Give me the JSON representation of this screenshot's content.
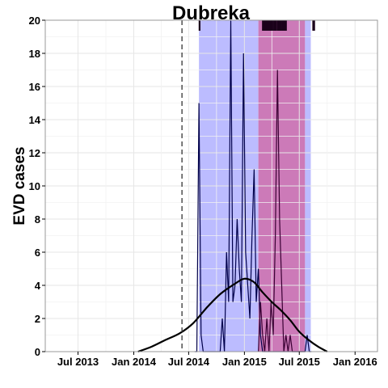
{
  "chart_data": {
    "type": "line",
    "title": "Dubreka",
    "xlabel": "",
    "ylabel": "EVD cases",
    "xlim": [
      "2013-03-15",
      "2016-03-15"
    ],
    "ylim": [
      0,
      20
    ],
    "y_ticks": [
      0,
      2,
      4,
      6,
      8,
      10,
      12,
      14,
      16,
      18,
      20
    ],
    "x_ticks": [
      {
        "date": "2013-07-01",
        "label": "Jul 2013"
      },
      {
        "date": "2014-01-01",
        "label": "Jan 2014"
      },
      {
        "date": "2014-07-01",
        "label": "Jul 2014"
      },
      {
        "date": "2015-01-01",
        "label": "Jan 2015"
      },
      {
        "date": "2015-07-01",
        "label": "Jul 2015"
      },
      {
        "date": "2016-01-01",
        "label": "Jan 2016"
      }
    ],
    "grid": true,
    "vertical_line": {
      "date": "2014-06-09",
      "style": "dashed"
    },
    "shaded_regions": [
      {
        "start": "2014-08-04",
        "end": "2015-02-16",
        "color": "#bcbcff"
      },
      {
        "start": "2015-02-16",
        "end": "2015-07-20",
        "color": "#cc7ab8"
      },
      {
        "start": "2015-07-20",
        "end": "2015-08-08",
        "color": "#bcbcff"
      }
    ],
    "series": [
      {
        "color": "#00004a",
        "x": [
          "2014-07-21",
          "2014-07-28",
          "2014-08-04",
          "2014-08-11",
          "2014-08-18",
          "2014-08-25",
          "2014-09-01",
          "2014-09-08",
          "2014-09-15",
          "2014-09-22",
          "2014-09-29",
          "2014-10-06",
          "2014-10-13",
          "2014-10-20",
          "2014-10-27",
          "2014-11-03",
          "2014-11-10",
          "2014-11-17",
          "2014-11-24",
          "2014-12-01",
          "2014-12-08",
          "2014-12-15",
          "2014-12-22",
          "2014-12-29",
          "2015-01-05",
          "2015-01-12",
          "2015-01-19",
          "2015-01-26",
          "2015-02-02",
          "2015-02-09",
          "2015-02-16",
          "2015-02-23",
          "2015-03-02",
          "2015-03-09",
          "2015-03-16",
          "2015-03-23",
          "2015-03-30",
          "2015-04-06",
          "2015-04-13",
          "2015-04-20",
          "2015-04-27",
          "2015-05-04",
          "2015-05-11",
          "2015-05-18",
          "2015-05-25",
          "2015-06-01",
          "2015-06-08",
          "2015-06-15",
          "2015-06-22",
          "2015-06-29",
          "2015-07-06",
          "2015-07-13",
          "2015-07-20",
          "2015-07-27",
          "2015-08-03",
          "2015-08-10"
        ],
        "values": [
          0,
          0,
          15,
          1,
          0,
          0,
          0,
          0,
          0,
          0,
          0,
          0,
          0,
          2,
          0,
          6,
          3,
          20,
          3,
          4,
          8,
          5,
          3,
          18,
          6,
          4,
          2,
          7,
          11,
          3,
          5,
          1,
          0,
          0,
          0,
          0,
          0,
          0,
          0,
          0,
          0,
          0,
          0,
          0,
          0,
          0,
          0,
          0,
          0,
          0,
          0,
          0,
          0,
          1,
          0,
          0
        ]
      },
      {
        "color": "#3a0033",
        "x": [
          "2015-02-16",
          "2015-02-23",
          "2015-03-02",
          "2015-03-09",
          "2015-03-16",
          "2015-03-23",
          "2015-03-30",
          "2015-04-06",
          "2015-04-13",
          "2015-04-20",
          "2015-04-27",
          "2015-05-04",
          "2015-05-11",
          "2015-05-18",
          "2015-05-25",
          "2015-06-01",
          "2015-06-08",
          "2015-06-15",
          "2015-06-22",
          "2015-06-29",
          "2015-07-06",
          "2015-07-13",
          "2015-07-20"
        ],
        "values": [
          0,
          3,
          1,
          0,
          2,
          0,
          3,
          1,
          7,
          17,
          8,
          4,
          0,
          1,
          0,
          1,
          0,
          0,
          0,
          0,
          0,
          0,
          0
        ]
      },
      {
        "color": "#000000",
        "smooth": true,
        "x": [
          "2014-01-15",
          "2014-03-01",
          "2014-04-15",
          "2014-06-01",
          "2014-07-15",
          "2014-09-01",
          "2014-10-15",
          "2014-12-01",
          "2015-01-01",
          "2015-02-01",
          "2015-03-01",
          "2015-04-01",
          "2015-05-01",
          "2015-06-01",
          "2015-07-01",
          "2015-08-01",
          "2015-09-01",
          "2015-10-01"
        ],
        "values": [
          0,
          0.3,
          0.7,
          1.1,
          1.7,
          2.7,
          3.5,
          4.1,
          4.4,
          4.2,
          3.6,
          3.0,
          2.5,
          1.9,
          1.2,
          0.7,
          0.3,
          0
        ]
      }
    ],
    "rug_dates": [
      "2014-08-06",
      "2015-03-03",
      "2015-03-08",
      "2015-03-11",
      "2015-03-14",
      "2015-03-17",
      "2015-03-20",
      "2015-03-25",
      "2015-03-29",
      "2015-04-03",
      "2015-04-09",
      "2015-04-13",
      "2015-04-16",
      "2015-04-22",
      "2015-04-27",
      "2015-05-02",
      "2015-05-07",
      "2015-05-11",
      "2015-05-14",
      "2015-05-18",
      "2015-08-16",
      "2015-08-19"
    ]
  }
}
